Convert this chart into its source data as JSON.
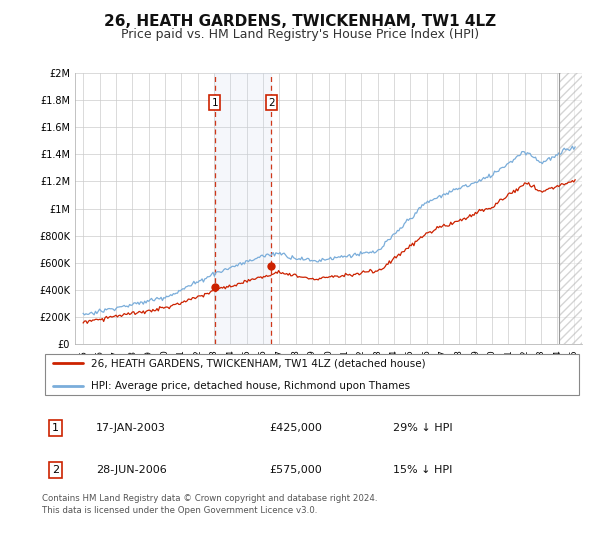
{
  "title": "26, HEATH GARDENS, TWICKENHAM, TW1 4LZ",
  "subtitle": "Price paid vs. HM Land Registry's House Price Index (HPI)",
  "ylim": [
    0,
    2000000
  ],
  "yticks": [
    0,
    200000,
    400000,
    600000,
    800000,
    1000000,
    1200000,
    1400000,
    1600000,
    1800000,
    2000000
  ],
  "ytick_labels": [
    "£0",
    "£200K",
    "£400K",
    "£600K",
    "£800K",
    "£1M",
    "£1.2M",
    "£1.4M",
    "£1.6M",
    "£1.8M",
    "£2M"
  ],
  "hpi_color": "#7aadda",
  "price_color": "#cc2200",
  "sale1_x": 2003.04,
  "sale1_y": 425000,
  "sale2_x": 2006.5,
  "sale2_y": 575000,
  "shade_x1": 2003.04,
  "shade_x2": 2006.5,
  "xlim_left": 1994.5,
  "xlim_right": 2025.5,
  "hatch_start": 2024.08,
  "legend_line1": "26, HEATH GARDENS, TWICKENHAM, TW1 4LZ (detached house)",
  "legend_line2": "HPI: Average price, detached house, Richmond upon Thames",
  "sale1_date": "17-JAN-2003",
  "sale1_price": "£425,000",
  "sale1_hpi": "29% ↓ HPI",
  "sale2_date": "28-JUN-2006",
  "sale2_price": "£575,000",
  "sale2_hpi": "15% ↓ HPI",
  "footnote": "Contains HM Land Registry data © Crown copyright and database right 2024.\nThis data is licensed under the Open Government Licence v3.0.",
  "grid_color": "#cccccc",
  "title_fontsize": 11,
  "subtitle_fontsize": 9
}
